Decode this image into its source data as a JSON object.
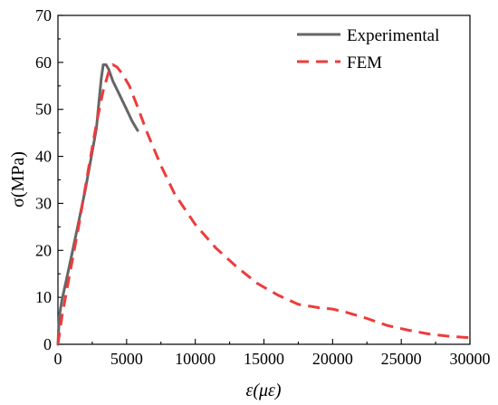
{
  "chart_data": {
    "type": "line",
    "xlabel": "ε(με)",
    "ylabel": "σ(MPa)",
    "xlim": [
      0,
      30000
    ],
    "ylim": [
      0,
      70
    ],
    "x_ticks": [
      0,
      5000,
      10000,
      15000,
      20000,
      25000,
      30000
    ],
    "y_ticks": [
      0,
      10,
      20,
      30,
      40,
      50,
      60,
      70
    ],
    "grid": false,
    "legend_position": "top-right",
    "series": [
      {
        "name": "Experimental",
        "color": "#666666",
        "line_style": "solid",
        "x": [
          0,
          100,
          300,
          600,
          1000,
          1500,
          2000,
          2500,
          2800,
          3000,
          3150,
          3300,
          3500,
          3700,
          4000,
          4500,
          5000,
          5400,
          5800
        ],
        "y": [
          0,
          6,
          9.5,
          13.5,
          19,
          26,
          33,
          41,
          46,
          52,
          56.5,
          59.5,
          59.5,
          58.5,
          56,
          53,
          50,
          47.5,
          45.5
        ]
      },
      {
        "name": "FEM",
        "color": "#ee3b3b",
        "line_style": "dashed",
        "x": [
          0,
          300,
          800,
          1500,
          2200,
          2800,
          3300,
          3700,
          4000,
          4300,
          4700,
          5200,
          5800,
          6500,
          7500,
          8500,
          10000,
          11500,
          13000,
          14500,
          16000,
          17500,
          19000,
          20000,
          21000,
          22500,
          24000,
          25500,
          27000,
          28500,
          30000
        ],
        "y": [
          0,
          6,
          14,
          25,
          37,
          47,
          54,
          58,
          59.5,
          59,
          57.5,
          55,
          50.5,
          45,
          38,
          32,
          25.5,
          20.5,
          16.5,
          13,
          10.5,
          8.5,
          7.8,
          7.5,
          6.8,
          5.5,
          4,
          3,
          2.2,
          1.7,
          1.4
        ]
      }
    ]
  }
}
